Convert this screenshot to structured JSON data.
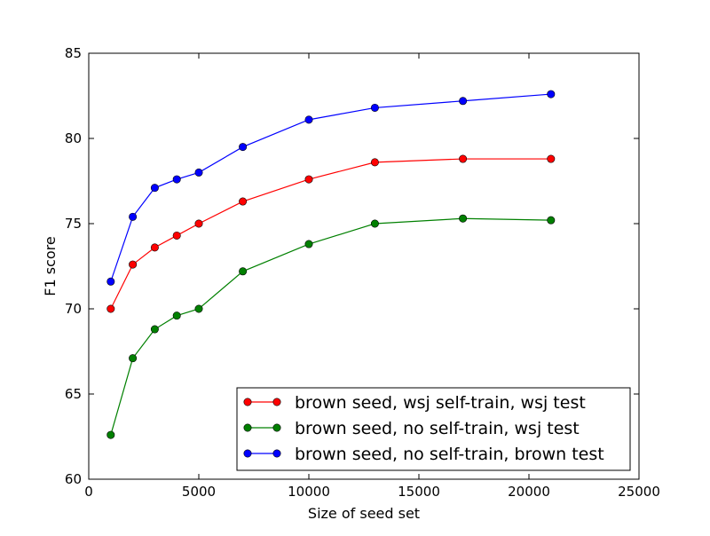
{
  "chart_data": {
    "type": "line",
    "title": "",
    "xlabel": "Size of seed set",
    "ylabel": "F1 score",
    "xlim": [
      0,
      25000
    ],
    "ylim": [
      60,
      85
    ],
    "xticks": [
      0,
      5000,
      10000,
      15000,
      20000,
      25000
    ],
    "xtick_labels": [
      "0",
      "5000",
      "10000",
      "15000",
      "20000",
      "25000"
    ],
    "yticks": [
      60,
      65,
      70,
      75,
      80,
      85
    ],
    "ytick_labels": [
      "60",
      "65",
      "70",
      "75",
      "80",
      "85"
    ],
    "grid": false,
    "legend_position": "lower-right",
    "x": [
      1000,
      2000,
      3000,
      4000,
      5000,
      7000,
      10000,
      13000,
      17000,
      21000
    ],
    "series": [
      {
        "name": "brown seed, wsj self-train, wsj test",
        "color": "#ff0000",
        "marker": "circle",
        "values": [
          70.0,
          72.6,
          73.6,
          74.3,
          75.0,
          76.3,
          77.6,
          78.6,
          78.8,
          78.8
        ]
      },
      {
        "name": "brown seed, no self-train, wsj test",
        "color": "#008000",
        "marker": "circle",
        "values": [
          62.6,
          67.1,
          68.8,
          69.6,
          70.0,
          72.2,
          73.8,
          75.0,
          75.3,
          75.2
        ]
      },
      {
        "name": "brown seed, no self-train, brown test",
        "color": "#0000ff",
        "marker": "circle",
        "values": [
          71.6,
          75.4,
          77.1,
          77.6,
          78.0,
          79.5,
          81.1,
          81.8,
          82.2,
          82.6
        ]
      }
    ]
  }
}
